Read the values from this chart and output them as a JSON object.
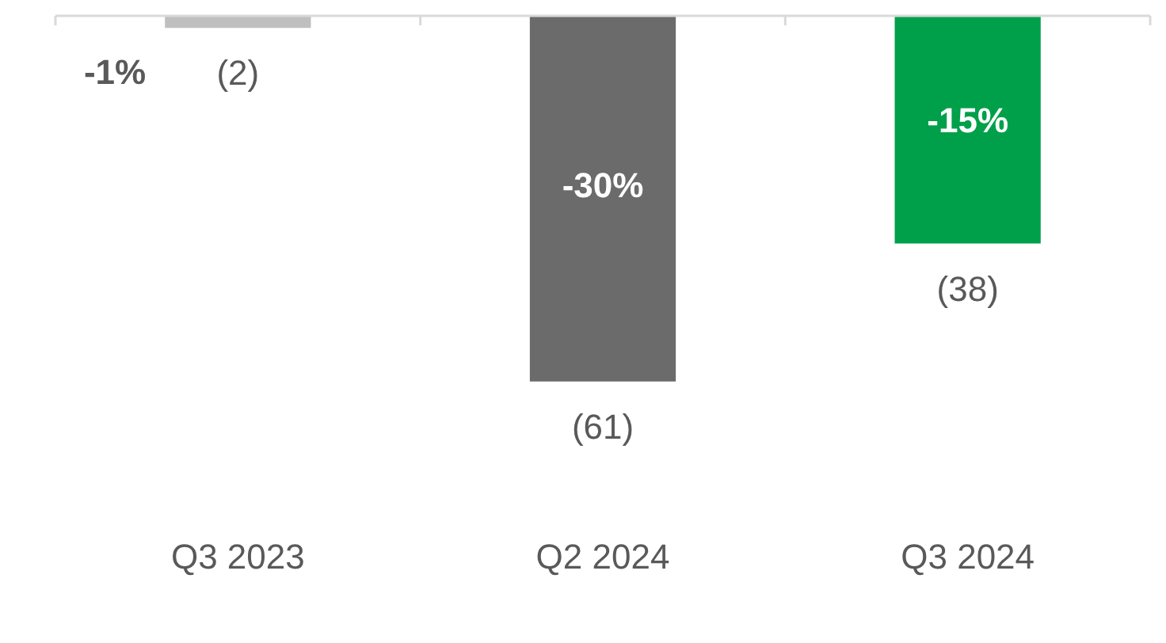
{
  "chart_data": {
    "type": "bar",
    "categories": [
      "Q3 2023",
      "Q2 2024",
      "Q3 2024"
    ],
    "values": [
      -2,
      -61,
      -38
    ],
    "colors": [
      "#bfbfbf",
      "#6b6b6b",
      "#00a04a"
    ],
    "value_labels": [
      "(2)",
      "(61)",
      "(38)"
    ],
    "annotations": [
      "-1%",
      "-30%",
      "-15%"
    ],
    "grid": false,
    "legend": false
  }
}
